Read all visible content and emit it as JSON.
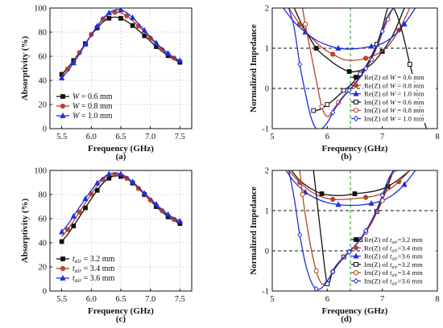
{
  "colors": {
    "black": "#111111",
    "red": "#b5452a",
    "blue": "#1f2ee0",
    "green": "#2a9a2a",
    "gray": "#cccccc"
  },
  "chart_data": [
    {
      "id": "a",
      "type": "line",
      "caption": "(a)",
      "xlabel": "Frequency (GHz)",
      "ylabel": "Absorptivity (%)",
      "xlim": [
        5.3,
        7.7
      ],
      "ylim": [
        0,
        100
      ],
      "xticks": [
        "5.5",
        "6.0",
        "6.5",
        "7.0",
        "7.5"
      ],
      "yticks": [
        "0",
        "20",
        "40",
        "60",
        "80",
        "100"
      ],
      "grid": true,
      "legend_position": "bottom-left",
      "series": [
        {
          "name": "W = 0.6 mm",
          "label_main": "W",
          "label_sub": "",
          "label_rest": " = 0.6 mm",
          "color": "black",
          "marker": "square",
          "x": [
            5.5,
            5.6,
            5.7,
            5.8,
            5.9,
            6.0,
            6.1,
            6.2,
            6.3,
            6.4,
            6.5,
            6.6,
            6.7,
            6.8,
            6.9,
            7.0,
            7.1,
            7.2,
            7.3,
            7.4,
            7.5
          ],
          "values": [
            45,
            50.5,
            56.5,
            63.5,
            70.5,
            77.5,
            83.5,
            88.5,
            91.5,
            92.5,
            91.5,
            89,
            85.5,
            81.5,
            77,
            72.5,
            68,
            64,
            60.5,
            57.5,
            55
          ]
        },
        {
          "name": "W = 0.8 mm",
          "label_main": "W",
          "label_sub": "",
          "label_rest": " = 0.8 mm",
          "color": "red",
          "marker": "circle",
          "x": [
            5.5,
            5.6,
            5.7,
            5.8,
            5.9,
            6.0,
            6.1,
            6.2,
            6.3,
            6.4,
            6.5,
            6.6,
            6.7,
            6.8,
            6.9,
            7.0,
            7.1,
            7.2,
            7.3,
            7.4,
            7.5
          ],
          "values": [
            44,
            49.5,
            56,
            63,
            70.5,
            78,
            85,
            91,
            95,
            96.5,
            96,
            93.5,
            89.5,
            85,
            80,
            75,
            70,
            65.5,
            61.5,
            58.5,
            56
          ]
        },
        {
          "name": "W = 1.0 mm",
          "label_main": "W",
          "label_sub": "",
          "label_rest": " = 1.0 mm",
          "color": "blue",
          "marker": "triangle",
          "x": [
            5.5,
            5.6,
            5.7,
            5.8,
            5.9,
            6.0,
            6.1,
            6.2,
            6.3,
            6.4,
            6.5,
            6.6,
            6.7,
            6.8,
            6.9,
            7.0,
            7.1,
            7.2,
            7.3,
            7.4,
            7.5
          ],
          "values": [
            42,
            47.5,
            54.5,
            62,
            70,
            77.5,
            85,
            91.5,
            96,
            98.5,
            98.5,
            96,
            92,
            87,
            81.5,
            76,
            71,
            66.5,
            62.5,
            59,
            56.5
          ]
        }
      ]
    },
    {
      "id": "b",
      "type": "line",
      "caption": "(b)",
      "xlabel": "Frequency (GHz)",
      "ylabel": "Normalized Impedance",
      "xlim": [
        5,
        8
      ],
      "ylim": [
        -1,
        2
      ],
      "xticks": [
        "5",
        "6",
        "7",
        "8"
      ],
      "yticks": [
        "-1",
        "0",
        "1",
        "2"
      ],
      "hlines": [
        0,
        1
      ],
      "vline": 6.42,
      "legend_position": "right",
      "series": [
        {
          "name": "Re(Z) of W = 0.6 mm",
          "label_main": "Re(Z) of ",
          "label_var": "W",
          "label_sub": "",
          "label_rest": " = 0.6 mm",
          "color": "black",
          "marker": "square",
          "style": "filled",
          "x": [
            5.4,
            5.5,
            5.6,
            5.8,
            6.0,
            6.2,
            6.4,
            6.6,
            6.8,
            7.0,
            7.2,
            7.4
          ],
          "values": [
            2.0,
            1.7,
            1.45,
            1.0,
            0.75,
            0.55,
            0.42,
            0.45,
            0.6,
            0.92,
            1.35,
            2.0
          ]
        },
        {
          "name": "Re(Z) of W = 0.8 mm",
          "label_main": "Re(Z) of ",
          "label_var": "W",
          "label_sub": "",
          "label_rest": " = 0.8 mm",
          "color": "red",
          "marker": "circle",
          "style": "filled",
          "x": [
            5.3,
            5.5,
            5.7,
            5.9,
            6.1,
            6.3,
            6.5,
            6.7,
            6.9,
            7.1,
            7.3,
            7.5
          ],
          "values": [
            2.0,
            1.6,
            1.28,
            1.02,
            0.85,
            0.72,
            0.7,
            0.75,
            0.85,
            1.05,
            1.45,
            2.0
          ]
        },
        {
          "name": "Re(Z) of W = 1.0 mm",
          "label_main": "Re(Z) of ",
          "label_var": "W",
          "label_sub": "",
          "label_rest": " = 1.0 mm",
          "color": "blue",
          "marker": "triangle",
          "style": "filled",
          "x": [
            5.2,
            5.4,
            5.6,
            5.8,
            6.0,
            6.2,
            6.4,
            6.6,
            6.8,
            7.0,
            7.2,
            7.4,
            7.6
          ],
          "values": [
            2.0,
            1.65,
            1.4,
            1.2,
            1.08,
            1.0,
            0.98,
            1.0,
            1.05,
            1.12,
            1.3,
            1.6,
            2.0
          ]
        },
        {
          "name": "Im(Z) of W = 0.6 mm",
          "label_main": "Im(Z) of ",
          "label_var": "W",
          "label_sub": "",
          "label_rest": " = 0.6 mm",
          "color": "black",
          "marker": "square",
          "style": "open",
          "x": [
            5.75,
            5.8,
            5.9,
            6.0,
            6.1,
            6.2,
            6.3,
            6.4,
            6.5,
            6.6,
            6.7,
            6.8,
            6.9,
            7.0,
            7.1,
            7.2,
            7.3,
            7.4,
            7.5,
            7.6,
            7.7,
            7.8
          ],
          "values": [
            -0.55,
            -0.55,
            -0.5,
            -0.4,
            -0.3,
            -0.18,
            -0.05,
            0.05,
            0.2,
            0.36,
            0.55,
            0.8,
            1.1,
            1.5,
            2.0,
            2.0,
            1.7,
            1.2,
            0.6,
            0.1,
            -0.5,
            -1.0
          ]
        },
        {
          "name": "Im(Z) of W = 0.8 mm",
          "label_main": "Im(Z) of ",
          "label_var": "W",
          "label_sub": "",
          "label_rest": " = 0.8 mm",
          "color": "red",
          "marker": "circle",
          "style": "open",
          "x": [
            5.55,
            5.6,
            5.7,
            5.8,
            5.9,
            6.0,
            6.1,
            6.2,
            6.3,
            6.4,
            6.5,
            6.6,
            6.7,
            6.8,
            6.9,
            7.0,
            7.1,
            7.2,
            7.3
          ],
          "values": [
            2.0,
            1.6,
            0.9,
            0.2,
            -0.45,
            -0.7,
            -0.55,
            -0.35,
            -0.18,
            -0.05,
            0.1,
            0.28,
            0.48,
            0.72,
            1.02,
            1.38,
            1.72,
            2.0,
            2.0
          ]
        },
        {
          "name": "Im(Z) of W = 1.0 mm",
          "label_main": "Im(Z) of ",
          "label_var": "W",
          "label_sub": "",
          "label_rest": " = 1.0 mm",
          "color": "blue",
          "marker": "diamond",
          "style": "open",
          "x": [
            5.3,
            5.4,
            5.5,
            5.6,
            5.7,
            5.8,
            5.9,
            6.0,
            6.1,
            6.2,
            6.3,
            6.4,
            6.5,
            6.6,
            6.7,
            6.8,
            6.9,
            7.0,
            7.1,
            7.2
          ],
          "values": [
            2.0,
            1.5,
            0.6,
            -0.1,
            -0.7,
            -1.0,
            -1.0,
            -0.85,
            -0.6,
            -0.38,
            -0.2,
            -0.05,
            0.12,
            0.3,
            0.5,
            0.75,
            1.05,
            1.42,
            1.8,
            2.0
          ]
        }
      ]
    },
    {
      "id": "c",
      "type": "line",
      "caption": "(c)",
      "xlabel": "Frequency (GHz)",
      "ylabel": "Absorptivity (%)",
      "xlim": [
        5.3,
        7.7
      ],
      "ylim": [
        0,
        100
      ],
      "xticks": [
        "5.5",
        "6.0",
        "6.5",
        "7.0",
        "7.5"
      ],
      "yticks": [
        "0",
        "20",
        "40",
        "60",
        "80",
        "100"
      ],
      "grid": true,
      "legend_position": "bottom-left",
      "series": [
        {
          "name": "t_air = 3.2 mm",
          "label_main": "t",
          "label_sub": "air",
          "label_rest": " = 3.2 mm",
          "color": "black",
          "marker": "square",
          "x": [
            5.5,
            5.6,
            5.7,
            5.8,
            5.9,
            6.0,
            6.1,
            6.2,
            6.3,
            6.4,
            6.5,
            6.6,
            6.7,
            6.8,
            6.9,
            7.0,
            7.1,
            7.2,
            7.3,
            7.4,
            7.5
          ],
          "values": [
            41,
            47,
            54,
            61.5,
            69,
            76.5,
            83.5,
            89.5,
            93.5,
            95.5,
            95,
            93,
            89.5,
            85,
            80,
            75,
            70,
            65.5,
            61.5,
            58.5,
            56
          ]
        },
        {
          "name": "t_air = 3.4 mm",
          "label_main": "t",
          "label_sub": "air",
          "label_rest": " = 3.4 mm",
          "color": "red",
          "marker": "circle",
          "x": [
            5.5,
            5.6,
            5.7,
            5.8,
            5.9,
            6.0,
            6.1,
            6.2,
            6.3,
            6.4,
            6.5,
            6.6,
            6.7,
            6.8,
            6.9,
            7.0,
            7.1,
            7.2,
            7.3,
            7.4,
            7.5
          ],
          "values": [
            45,
            51,
            58,
            65.5,
            73,
            80.5,
            87,
            92.5,
            95.5,
            96.5,
            96,
            93.5,
            89.5,
            85,
            80,
            75.5,
            71,
            66.5,
            62.5,
            59.5,
            57
          ]
        },
        {
          "name": "t_air = 3.6 mm",
          "label_main": "t",
          "label_sub": "air",
          "label_rest": " = 3.6 mm",
          "color": "blue",
          "marker": "triangle",
          "x": [
            5.5,
            5.6,
            5.7,
            5.8,
            5.9,
            6.0,
            6.1,
            6.2,
            6.3,
            6.4,
            6.5,
            6.6,
            6.7,
            6.8,
            6.9,
            7.0,
            7.1,
            7.2,
            7.3,
            7.4,
            7.5
          ],
          "values": [
            49,
            55,
            62,
            69.5,
            76.5,
            83.5,
            89.5,
            94,
            97,
            98,
            97,
            94.5,
            90.5,
            86,
            81,
            76.5,
            72,
            67.5,
            63.5,
            60.5,
            58
          ]
        }
      ]
    },
    {
      "id": "d",
      "type": "line",
      "caption": "(d)",
      "xlabel": "Frequency (GHz)",
      "ylabel": "Normalized Impedance",
      "xlim": [
        5,
        8
      ],
      "ylim": [
        -1,
        2
      ],
      "xticks": [
        "5",
        "6",
        "7",
        "8"
      ],
      "yticks": [
        "-1",
        "0",
        "1",
        "2"
      ],
      "hlines": [
        0,
        1
      ],
      "vline": 6.42,
      "legend_position": "right",
      "series": [
        {
          "name": "Re(Z) of t_air=3.2 mm",
          "label_main": "Re(Z) of ",
          "label_var": "t",
          "label_sub": "air",
          "label_rest": "=3.2 mm",
          "color": "black",
          "marker": "square",
          "style": "filled",
          "x": [
            5.35,
            5.5,
            5.7,
            5.9,
            6.1,
            6.3,
            6.5,
            6.7,
            6.9,
            7.1,
            7.3,
            7.5
          ],
          "values": [
            2.0,
            1.75,
            1.55,
            1.42,
            1.38,
            1.38,
            1.42,
            1.45,
            1.5,
            1.6,
            1.78,
            2.0
          ]
        },
        {
          "name": "Re(Z) of t_air=3.4 mm",
          "label_main": "Re(Z) of ",
          "label_var": "t",
          "label_sub": "air",
          "label_rest": "=3.4 mm",
          "color": "red",
          "marker": "circle",
          "style": "filled",
          "x": [
            5.3,
            5.5,
            5.7,
            5.9,
            6.1,
            6.3,
            6.5,
            6.7,
            6.9,
            7.1,
            7.3,
            7.5
          ],
          "values": [
            2.0,
            1.7,
            1.48,
            1.34,
            1.28,
            1.28,
            1.3,
            1.33,
            1.38,
            1.5,
            1.72,
            2.0
          ]
        },
        {
          "name": "Re(Z) of t_air=3.6 mm",
          "label_main": "Re(Z) of ",
          "label_var": "t",
          "label_sub": "air",
          "label_rest": "=3.6 mm",
          "color": "blue",
          "marker": "triangle",
          "style": "filled",
          "x": [
            5.25,
            5.4,
            5.6,
            5.8,
            6.0,
            6.2,
            6.4,
            6.6,
            6.8,
            7.0,
            7.2,
            7.4,
            7.6
          ],
          "values": [
            2.0,
            1.72,
            1.46,
            1.3,
            1.2,
            1.15,
            1.13,
            1.14,
            1.18,
            1.25,
            1.4,
            1.65,
            2.0
          ]
        },
        {
          "name": "Im(Z) of t_air=3.2 mm",
          "label_main": "Im(Z) of ",
          "label_var": "t",
          "label_sub": "air",
          "label_rest": "=3.2 mm",
          "color": "black",
          "marker": "square",
          "style": "open",
          "x": [
            5.75,
            5.8,
            5.9,
            6.0,
            6.1,
            6.2,
            6.3,
            6.4,
            6.5,
            6.6,
            6.7,
            6.8,
            6.9,
            7.0,
            7.1,
            7.2,
            7.3
          ],
          "values": [
            2.0,
            1.4,
            0.2,
            -0.82,
            -0.5,
            -0.3,
            -0.15,
            -0.02,
            0.12,
            0.28,
            0.47,
            0.7,
            0.98,
            1.3,
            1.65,
            2.0,
            2.0
          ]
        },
        {
          "name": "Im(Z) of t_air=3.4 mm",
          "label_main": "Im(Z) of ",
          "label_var": "t",
          "label_sub": "air",
          "label_rest": "=3.4 mm",
          "color": "red",
          "marker": "circle",
          "style": "open",
          "x": [
            5.5,
            5.55,
            5.6,
            5.7,
            5.8,
            5.9,
            6.0,
            6.1,
            6.2,
            6.3,
            6.4,
            6.5,
            6.6,
            6.7,
            6.8,
            6.9,
            7.0,
            7.1,
            7.2,
            7.3
          ],
          "values": [
            2.0,
            1.4,
            0.9,
            0.1,
            -0.5,
            -0.82,
            -0.75,
            -0.52,
            -0.32,
            -0.16,
            -0.02,
            0.12,
            0.28,
            0.46,
            0.68,
            0.95,
            1.25,
            1.6,
            1.95,
            2.0
          ]
        },
        {
          "name": "Im(Z) of t_air=3.6 mm",
          "label_main": "Im(Z) of ",
          "label_var": "t",
          "label_sub": "air",
          "label_rest": "=3.6 mm",
          "color": "blue",
          "marker": "diamond",
          "style": "open",
          "x": [
            5.3,
            5.4,
            5.5,
            5.6,
            5.7,
            5.8,
            5.9,
            6.0,
            6.1,
            6.2,
            6.3,
            6.4,
            6.5,
            6.6,
            6.7,
            6.8,
            6.9,
            7.0,
            7.1,
            7.2
          ],
          "values": [
            2.0,
            1.3,
            0.4,
            -0.3,
            -0.75,
            -0.95,
            -0.92,
            -0.75,
            -0.52,
            -0.33,
            -0.17,
            -0.03,
            0.12,
            0.3,
            0.5,
            0.74,
            1.03,
            1.38,
            1.75,
            2.0
          ]
        }
      ]
    }
  ]
}
